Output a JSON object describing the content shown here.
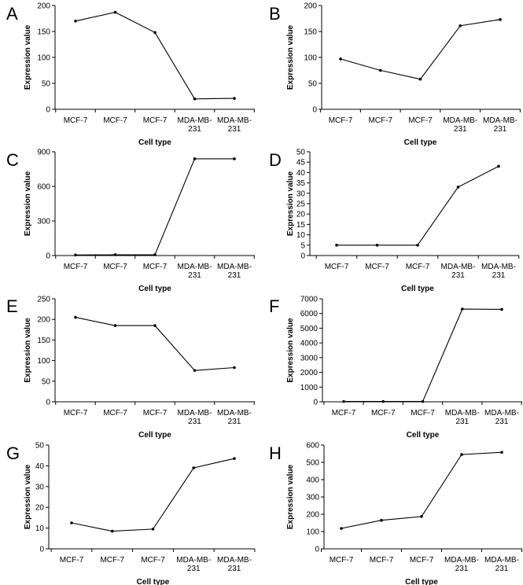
{
  "chart_data": [
    {
      "panel": "A",
      "type": "line",
      "categories": [
        [
          "MCF-7"
        ],
        [
          "MCF-7"
        ],
        [
          "MCF-7"
        ],
        [
          "MDA-MB-",
          "231"
        ],
        [
          "MDA-MB-",
          "231"
        ]
      ],
      "values": [
        170,
        187,
        148,
        20,
        21
      ],
      "yticks": [
        0,
        50,
        100,
        150,
        200
      ],
      "ylim": [
        0,
        200
      ],
      "xlabel": "Cell type",
      "ylabel": "Expression value"
    },
    {
      "panel": "B",
      "type": "line",
      "categories": [
        [
          "MCF-7"
        ],
        [
          "MCF-7"
        ],
        [
          "MCF-7"
        ],
        [
          "MDA-MB-",
          "231"
        ],
        [
          "MDA-MB-",
          "231"
        ]
      ],
      "values": [
        97,
        75,
        58,
        161,
        173
      ],
      "yticks": [
        0,
        50,
        100,
        150,
        200
      ],
      "ylim": [
        0,
        200
      ],
      "xlabel": "Cell type",
      "ylabel": "Expression value"
    },
    {
      "panel": "C",
      "type": "line",
      "categories": [
        [
          "MCF-7"
        ],
        [
          "MCF-7"
        ],
        [
          "MCF-7"
        ],
        [
          "MDA-MB-",
          "231"
        ],
        [
          "MDA-MB-",
          "231"
        ]
      ],
      "values": [
        5,
        7,
        7,
        839,
        839
      ],
      "yticks": [
        0,
        300,
        600,
        900
      ],
      "ylim": [
        0,
        900
      ],
      "xlabel": "Cell type",
      "ylabel": "Expression value"
    },
    {
      "panel": "D",
      "type": "line",
      "categories": [
        [
          "MCF-7"
        ],
        [
          "MCF-7"
        ],
        [
          "MCF-7"
        ],
        [
          "MDA-MB-",
          "231"
        ],
        [
          "MDA-MB-",
          "231"
        ]
      ],
      "values": [
        5,
        5,
        5,
        33,
        43
      ],
      "yticks": [
        0,
        5,
        10,
        15,
        20,
        25,
        30,
        35,
        40,
        45,
        50
      ],
      "ylim": [
        0,
        50
      ],
      "xlabel": "Cell type",
      "ylabel": "Expression value"
    },
    {
      "panel": "E",
      "type": "line",
      "categories": [
        [
          "MCF-7"
        ],
        [
          "MCF-7"
        ],
        [
          "MCF-7"
        ],
        [
          "MDA-MB-",
          "231"
        ],
        [
          "MDA-MB-",
          "231"
        ]
      ],
      "values": [
        205,
        185,
        185,
        76,
        83
      ],
      "yticks": [
        0,
        50,
        100,
        150,
        200,
        250
      ],
      "ylim": [
        0,
        250
      ],
      "xlabel": "Cell type",
      "ylabel": "Expression value"
    },
    {
      "panel": "F",
      "type": "line",
      "categories": [
        [
          "MCF-7"
        ],
        [
          "MCF-7"
        ],
        [
          "MCF-7"
        ],
        [
          "MDA-MB-",
          "231"
        ],
        [
          "MDA-MB-",
          "231"
        ]
      ],
      "values": [
        20,
        20,
        20,
        6300,
        6280
      ],
      "yticks": [
        0,
        1000,
        2000,
        3000,
        4000,
        5000,
        6000,
        7000
      ],
      "ylim": [
        0,
        7000
      ],
      "xlabel": "Cell type",
      "ylabel": "Expression value"
    },
    {
      "panel": "G",
      "type": "line",
      "categories": [
        [
          "MCF-7"
        ],
        [
          "MCF-7"
        ],
        [
          "MCF-7"
        ],
        [
          "MDA-MB-",
          "231"
        ],
        [
          "MDA-MB-",
          "231"
        ]
      ],
      "values": [
        12.5,
        8.5,
        9.5,
        39,
        43.5
      ],
      "yticks": [
        0,
        10,
        20,
        30,
        40,
        50
      ],
      "ylim": [
        0,
        50
      ],
      "xlabel": "Cell type",
      "ylabel": "Expression value"
    },
    {
      "panel": "H",
      "type": "line",
      "categories": [
        [
          "MCF-7"
        ],
        [
          "MCF-7"
        ],
        [
          "MCF-7"
        ],
        [
          "MDA-MB-",
          "231"
        ],
        [
          "MDA-MB-",
          "231"
        ]
      ],
      "values": [
        118,
        165,
        187,
        545,
        558
      ],
      "yticks": [
        0,
        100,
        200,
        300,
        400,
        500,
        600
      ],
      "ylim": [
        0,
        600
      ],
      "xlabel": "Cell type",
      "ylabel": "Expression value"
    }
  ]
}
